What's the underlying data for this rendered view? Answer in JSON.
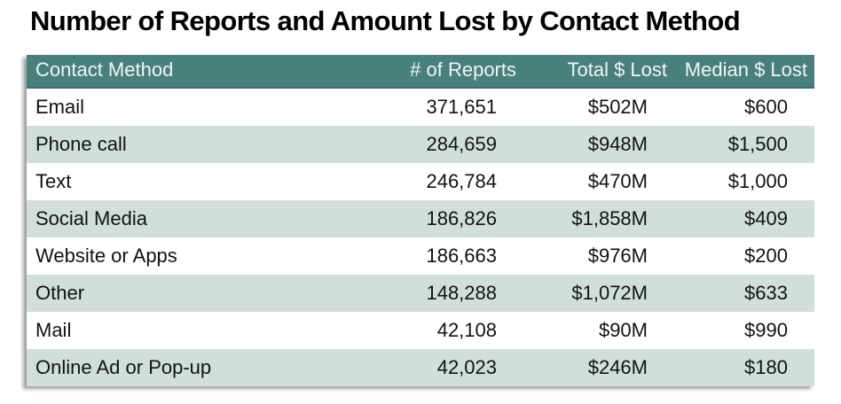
{
  "title": "Number of Reports and Amount Lost by Contact Method",
  "colors": {
    "header_bg": "#47807d",
    "header_text": "#f4f4f4",
    "row_alt_bg": "#d1dfd9",
    "row_bg": "#ffffff",
    "body_text": "#121212",
    "title_text": "#000000"
  },
  "table": {
    "columns": [
      "Contact Method",
      "# of Reports",
      "Total $ Lost",
      "Median $ Lost"
    ],
    "rows": [
      {
        "method": "Email",
        "reports": "371,651",
        "total": "$502M",
        "median": "$600"
      },
      {
        "method": "Phone call",
        "reports": "284,659",
        "total": "$948M",
        "median": "$1,500"
      },
      {
        "method": "Text",
        "reports": "246,784",
        "total": "$470M",
        "median": "$1,000"
      },
      {
        "method": "Social Media",
        "reports": "186,826",
        "total": "$1,858M",
        "median": "$409"
      },
      {
        "method": "Website or Apps",
        "reports": "186,663",
        "total": "$976M",
        "median": "$200"
      },
      {
        "method": "Other",
        "reports": "148,288",
        "total": "$1,072M",
        "median": "$633"
      },
      {
        "method": "Mail",
        "reports": "42,108",
        "total": "$90M",
        "median": "$990"
      },
      {
        "method": "Online Ad or Pop-up",
        "reports": "42,023",
        "total": "$246M",
        "median": "$180"
      }
    ]
  },
  "chart_data": {
    "type": "table",
    "title": "Number of Reports and Amount Lost by Contact Method",
    "columns": [
      "Contact Method",
      "# of Reports",
      "Total $ Lost",
      "Median $ Lost"
    ],
    "categories": [
      "Email",
      "Phone call",
      "Text",
      "Social Media",
      "Website or Apps",
      "Other",
      "Mail",
      "Online Ad or Pop-up"
    ],
    "series": [
      {
        "name": "# of Reports",
        "values": [
          371651,
          284659,
          246784,
          186826,
          186663,
          148288,
          42108,
          42023
        ]
      },
      {
        "name": "Total $ Lost (millions USD)",
        "values": [
          502,
          948,
          470,
          1858,
          976,
          1072,
          90,
          246
        ]
      },
      {
        "name": "Median $ Lost (USD)",
        "values": [
          600,
          1500,
          1000,
          409,
          200,
          633,
          990,
          180
        ]
      }
    ],
    "layout_hints": {
      "header_style": "teal band, white text",
      "row_striping": "white / pale sage alternating",
      "grid": false
    }
  }
}
